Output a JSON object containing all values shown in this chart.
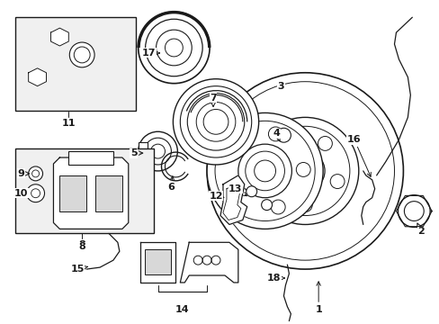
{
  "bg_color": "#ffffff",
  "fig_width": 4.89,
  "fig_height": 3.6,
  "dpi": 100,
  "line_color": "#1a1a1a",
  "label_fontsize": 8,
  "fill_color": "#e8e8e8"
}
